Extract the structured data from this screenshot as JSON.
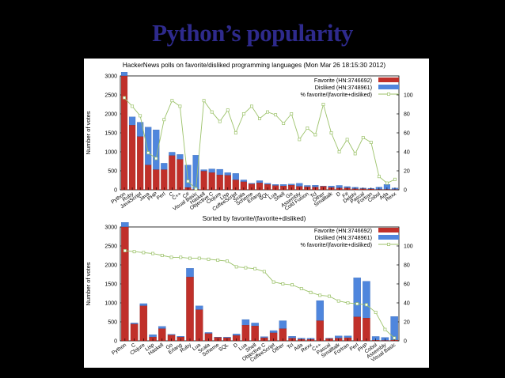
{
  "slide": {
    "title": "Python’s popularity"
  },
  "colors": {
    "favorite": "#c0302a",
    "disliked": "#4f86dd",
    "pct": "#9cc26a",
    "title": "#2e2a8c"
  },
  "chart_data": [
    {
      "type": "bar",
      "stacked": true,
      "title": "HackerNews polls on favorite/disliked programming languages (Mon Mar 26 18:15:30 2012)",
      "ylabel": "Number of votes",
      "ylim": [
        0,
        3000
      ],
      "y_ticks": [
        0,
        500,
        1000,
        1500,
        2000,
        2500,
        3000
      ],
      "y2lim": [
        0,
        120
      ],
      "y2_ticks": [
        0,
        20,
        40,
        60,
        80,
        100
      ],
      "grid": false,
      "legend_position": "top-right",
      "categories": [
        "Python",
        "Ruby",
        "JavaScript",
        "Java",
        "PHP",
        "Perl",
        "C",
        "C++",
        "C#",
        "Visual Basic",
        "Haskell",
        "Objective C",
        "Clojure",
        "Lisp",
        "CoffeeScript",
        "Scala",
        "Scheme",
        "Erlang",
        "SQL",
        "Lua",
        "Shell",
        "Go",
        "Assembly",
        "Cold Fusion",
        "Tcl",
        "Other",
        "Smalltalk",
        "D",
        "F#",
        "Delphi",
        "Pascal",
        "Fortran",
        "Cobol",
        "Ada",
        "Rexx"
      ],
      "series": [
        {
          "name": "Favorite (HN:3746692)",
          "values": [
            3000,
            1700,
            1400,
            650,
            530,
            530,
            900,
            800,
            60,
            10,
            490,
            450,
            390,
            380,
            260,
            210,
            150,
            180,
            140,
            110,
            100,
            120,
            90,
            75,
            70,
            90,
            60,
            45,
            45,
            25,
            25,
            20,
            10,
            10,
            5
          ]
        },
        {
          "name": "Disliked (HN:3748961)",
          "values": [
            100,
            220,
            380,
            1000,
            1050,
            170,
            90,
            130,
            590,
            900,
            40,
            100,
            150,
            70,
            170,
            50,
            20,
            60,
            30,
            30,
            40,
            30,
            80,
            40,
            50,
            10,
            40,
            70,
            40,
            40,
            20,
            20,
            60,
            130,
            40
          ]
        },
        {
          "name": "% favorite/(favorite+disliked)",
          "axis": "y2",
          "values": [
            97,
            88,
            78,
            39,
            33,
            74,
            94,
            88,
            9,
            1,
            94,
            82,
            72,
            84,
            60,
            80,
            88,
            75,
            82,
            79,
            70,
            80,
            53,
            65,
            58,
            90,
            60,
            40,
            53,
            38,
            55,
            50,
            14,
            7,
            11
          ]
        }
      ]
    },
    {
      "type": "bar",
      "stacked": true,
      "title": "Sorted by favorite/(favorite+disliked)",
      "ylabel": "Number of votes",
      "ylim": [
        0,
        3000
      ],
      "y_ticks": [
        0,
        500,
        1000,
        1500,
        2000,
        2500,
        3000
      ],
      "y2lim": [
        0,
        120
      ],
      "y2_ticks": [
        0,
        20,
        40,
        60,
        80,
        100
      ],
      "grid": false,
      "legend_position": "top-right",
      "categories": [
        "Python",
        "C",
        "Clojure",
        "Lisp",
        "Haskell",
        "Go",
        "Erlang",
        "Ruby",
        "Lua",
        "Scala",
        "Scheme",
        "SQL",
        "D",
        "Lua",
        "Shell",
        "Objective C",
        "CoffeeScript",
        "Other",
        "Tcl",
        "Ada",
        "Rexx",
        "C++",
        "Pascal",
        "Smalltalk",
        "Fortran",
        "Perl",
        "PHP",
        "Cobol",
        "Assembly",
        "Visual Basic"
      ],
      "series": [
        {
          "name": "Favorite (HN:3746692)",
          "values": [
            3000,
            440,
            920,
            100,
            320,
            150,
            100,
            1680,
            820,
            190,
            90,
            80,
            140,
            410,
            390,
            80,
            210,
            320,
            70,
            40,
            35,
            530,
            55,
            70,
            80,
            630,
            600,
            15,
            10,
            20
          ]
        },
        {
          "name": "Disliked (HN:3748961)",
          "values": [
            120,
            30,
            60,
            60,
            60,
            20,
            20,
            230,
            100,
            30,
            10,
            20,
            40,
            150,
            80,
            30,
            60,
            210,
            50,
            30,
            30,
            530,
            15,
            60,
            50,
            1030,
            970,
            100,
            80,
            620
          ]
        },
        {
          "name": "% favorite/(favorite+disliked)",
          "axis": "y2",
          "values": [
            95,
            94,
            93,
            92,
            90,
            88,
            88,
            87,
            87,
            86,
            85,
            84,
            78,
            77,
            76,
            73,
            62,
            60,
            59,
            55,
            51,
            48,
            47,
            42,
            40,
            39,
            38,
            30,
            12,
            3
          ]
        }
      ]
    }
  ]
}
